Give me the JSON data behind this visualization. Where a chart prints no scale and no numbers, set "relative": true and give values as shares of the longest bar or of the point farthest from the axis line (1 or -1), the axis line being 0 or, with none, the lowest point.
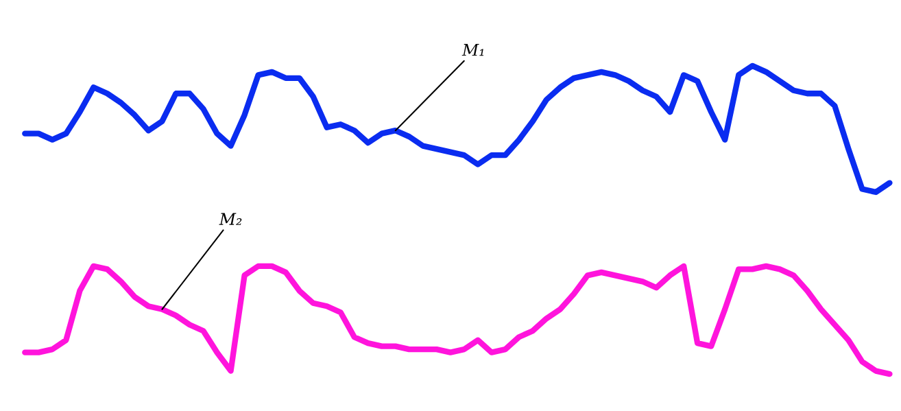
{
  "chart_data": {
    "type": "line",
    "relative": true,
    "categories": [
      null,
      null,
      null,
      null,
      null,
      null,
      null,
      null,
      null,
      null,
      null,
      null,
      null,
      null,
      null,
      null,
      null,
      null,
      null,
      null,
      null,
      null,
      null,
      null,
      null,
      null,
      null,
      null,
      null,
      null,
      null,
      null,
      null,
      null,
      null,
      null,
      null,
      null,
      null,
      null,
      null,
      null,
      null,
      null,
      null,
      null,
      null,
      null,
      null,
      null,
      null,
      null,
      null,
      null,
      null,
      null,
      null,
      null,
      null,
      null,
      null,
      null,
      null,
      null
    ],
    "series": [
      {
        "name": "M₁",
        "color": "#0a2cf0",
        "values": [
          0.78,
          0.78,
          0.76,
          0.78,
          0.85,
          0.93,
          0.91,
          0.88,
          0.84,
          0.79,
          0.82,
          0.91,
          0.91,
          0.86,
          0.78,
          0.74,
          0.84,
          0.97,
          0.98,
          0.96,
          0.96,
          0.9,
          0.8,
          0.81,
          0.79,
          0.75,
          0.78,
          0.79,
          0.77,
          0.74,
          0.73,
          0.72,
          0.71,
          0.68,
          0.71,
          0.71,
          0.76,
          0.82,
          0.89,
          0.93,
          0.96,
          0.97,
          0.98,
          0.97,
          0.95,
          0.92,
          0.9,
          0.85,
          0.97,
          0.95,
          0.85,
          0.76,
          0.97,
          1.0,
          0.98,
          0.95,
          0.92,
          0.91,
          0.91,
          0.87,
          0.73,
          0.6,
          0.59,
          0.62
        ]
      },
      {
        "name": "M₂",
        "color": "#ff14dc",
        "values": [
          0.07,
          0.07,
          0.08,
          0.11,
          0.27,
          0.35,
          0.34,
          0.3,
          0.25,
          0.22,
          0.21,
          0.19,
          0.16,
          0.14,
          0.07,
          0.01,
          0.32,
          0.35,
          0.35,
          0.33,
          0.27,
          0.23,
          0.22,
          0.2,
          0.12,
          0.1,
          0.09,
          0.09,
          0.08,
          0.08,
          0.08,
          0.07,
          0.08,
          0.11,
          0.07,
          0.08,
          0.12,
          0.14,
          0.18,
          0.21,
          0.26,
          0.32,
          0.33,
          0.32,
          0.31,
          0.3,
          0.28,
          0.32,
          0.35,
          0.1,
          0.09,
          0.21,
          0.34,
          0.34,
          0.35,
          0.34,
          0.32,
          0.27,
          0.21,
          0.16,
          0.11,
          0.04,
          0.01,
          0.0
        ]
      }
    ]
  }
}
